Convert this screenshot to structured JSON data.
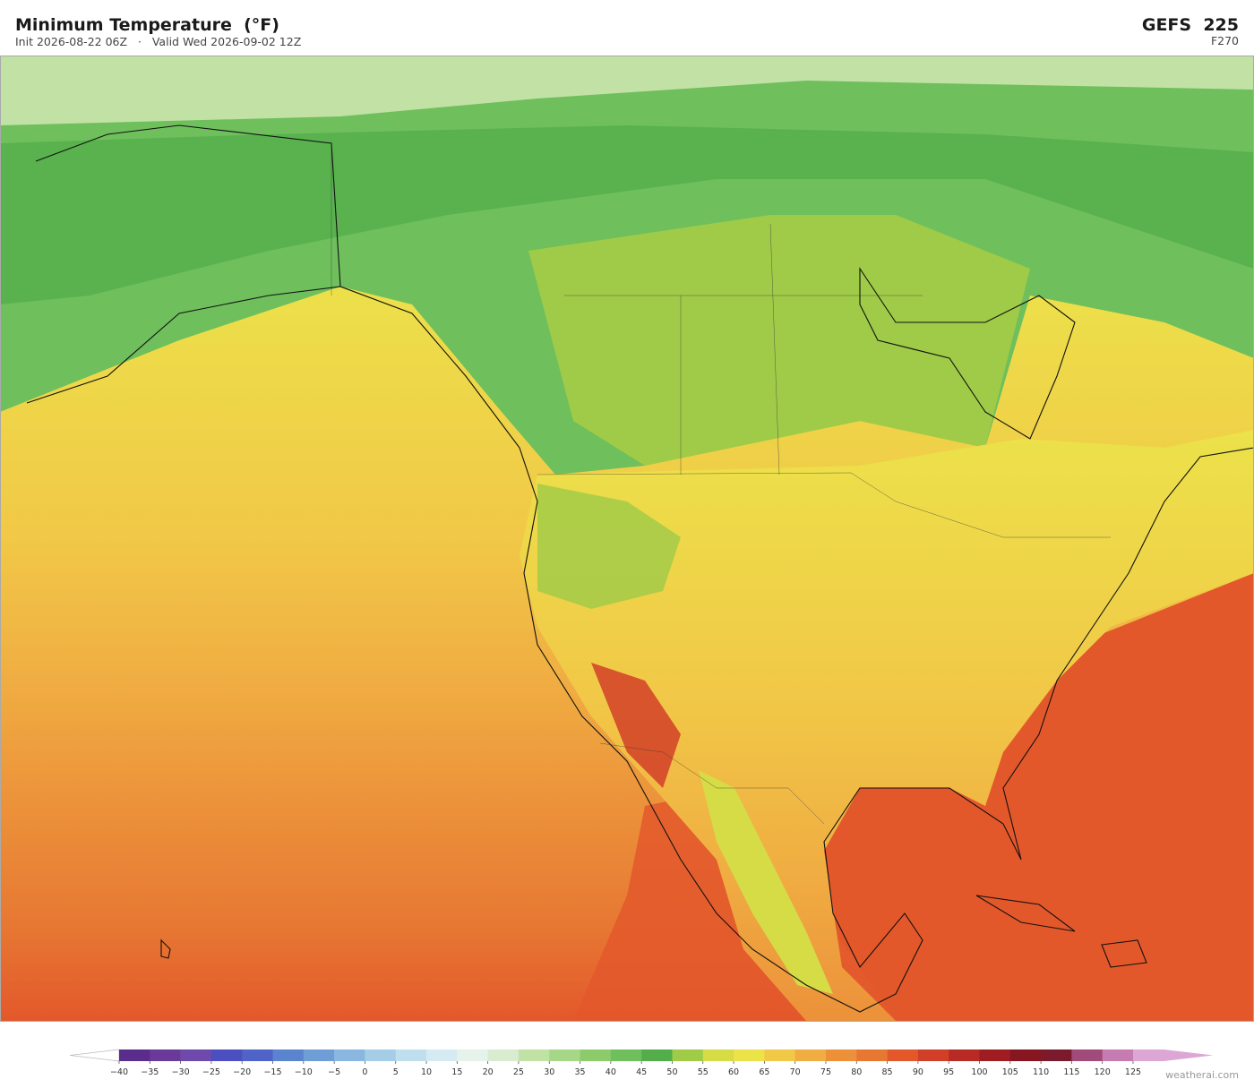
{
  "header": {
    "title": "Minimum Temperature  (°F)",
    "subtitle": "Init 2026-08-22 06Z   ·   Valid Wed 2026-09-02 12Z",
    "model": "GEFS  225",
    "forecast_hour": "F270"
  },
  "colorbar": {
    "ticks": [
      {
        "value": -40,
        "label": "−40"
      },
      {
        "value": -35,
        "label": "−35"
      },
      {
        "value": -30,
        "label": "−30"
      },
      {
        "value": -25,
        "label": "−25"
      },
      {
        "value": -20,
        "label": "−20"
      },
      {
        "value": -15,
        "label": "−15"
      },
      {
        "value": -10,
        "label": "−10"
      },
      {
        "value": -5,
        "label": "−5"
      },
      0,
      5,
      10,
      15,
      20,
      25,
      30,
      35,
      40,
      45,
      50,
      55,
      60,
      65,
      70,
      75,
      80,
      85,
      90,
      95,
      100,
      105,
      110,
      115,
      120,
      125
    ],
    "colors": [
      "#5a2d8c",
      "#6a3a9a",
      "#6e4aad",
      "#4b4fc1",
      "#4f63c9",
      "#5b84d0",
      "#6f9ed6",
      "#8ab7df",
      "#a5cde8",
      "#bfdfee",
      "#d6ebf1",
      "#e6f2ec",
      "#d8eccf",
      "#c2e2a5",
      "#a6d787",
      "#8ccb6c",
      "#6fbf5d",
      "#52ad4a",
      "#9fcb48",
      "#d5dc45",
      "#ece24a",
      "#f1c847",
      "#f0ad42",
      "#ec913a",
      "#e77833",
      "#e3582b",
      "#d23f28",
      "#b82a24",
      "#9e1c22",
      "#86161f",
      "#7a1a2a",
      "#a14b7a",
      "#c67bb3",
      "#dca7d4"
    ],
    "under_color": "#ffffff",
    "over_color": "#dca7d4"
  },
  "footer": {
    "watermark": "weatherai.com"
  }
}
